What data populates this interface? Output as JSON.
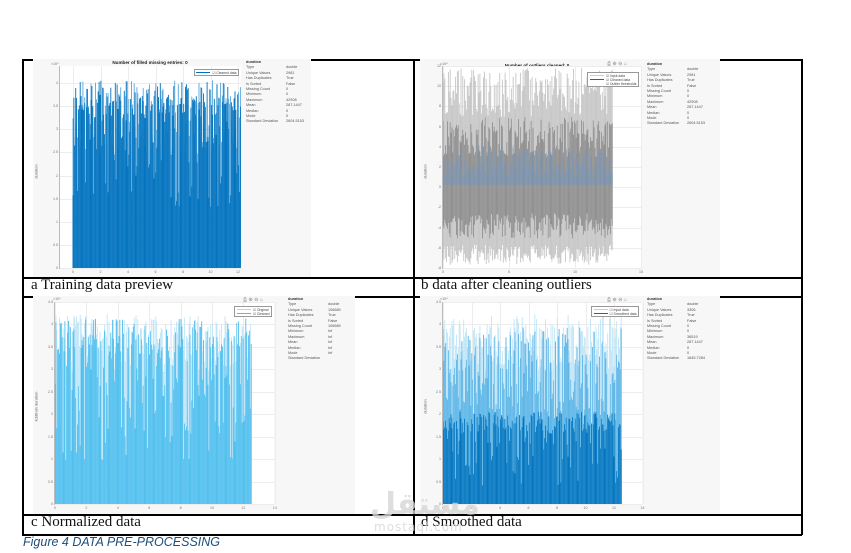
{
  "figure": {
    "caption": "Figure 4 DATA PRE-PROCESSING",
    "caption_color": "#1f4e79"
  },
  "panels": [
    {
      "id": "a",
      "caption": "a Training data preview",
      "plot_title": "Number of filled missing entries: 0",
      "y_exponent": "×10⁴",
      "y_label": "duration",
      "y_ticks": [
        "4",
        "3.5",
        "3",
        "2.5",
        "2",
        "1.5",
        "1",
        "0.5",
        "0"
      ],
      "x_ticks": [
        "0",
        "2",
        "4",
        "6",
        "8",
        "10",
        "12"
      ],
      "toolbar": false,
      "legend": [
        {
          "label": "☑ Cleaned data",
          "color": "#0072bd"
        }
      ],
      "stats": {
        "title": "duration",
        "rows": [
          {
            "key": "Type",
            "value": "double"
          },
          {
            "key": "Unique Values",
            "value": "2981"
          },
          {
            "key": "Has Duplicates",
            "value": "True"
          },
          {
            "key": "Is Sorted",
            "value": "False"
          },
          {
            "key": "Missing Count",
            "value": "0"
          },
          {
            "key": "Minimum",
            "value": "0"
          },
          {
            "key": "Maximum",
            "value": "42908"
          },
          {
            "key": "Mean",
            "value": "287.1447"
          },
          {
            "key": "Median",
            "value": "0"
          },
          {
            "key": "Mode",
            "value": "0"
          },
          {
            "key": "Standard Deviation",
            "value": "2604.5153"
          }
        ]
      }
    },
    {
      "id": "b",
      "caption": "b data after cleaning outliers",
      "plot_title": "Number of outliers cleaned: 0",
      "y_exponent": "×10⁴",
      "y_label": "duration",
      "y_ticks": [
        "12",
        "10",
        "8",
        "6",
        "4",
        "2",
        "0",
        "-2",
        "-4",
        "-6",
        "-8"
      ],
      "x_ticks": [
        "0",
        "5",
        "10",
        "15"
      ],
      "toolbar": true,
      "legend": [
        {
          "label": "☑ Input data",
          "color": "#a6d8f0"
        },
        {
          "label": "☑ Cleaned data",
          "color": "#0072bd"
        },
        {
          "label": "☑ Outlier thresholds",
          "color": "#ffffff"
        }
      ],
      "stats": {
        "title": "duration",
        "rows": [
          {
            "key": "Type",
            "value": "double"
          },
          {
            "key": "Unique Values",
            "value": "2981"
          },
          {
            "key": "Has Duplicates",
            "value": "True"
          },
          {
            "key": "Is Sorted",
            "value": "False"
          },
          {
            "key": "Missing Count",
            "value": "0"
          },
          {
            "key": "Minimum",
            "value": "0"
          },
          {
            "key": "Maximum",
            "value": "42908"
          },
          {
            "key": "Mean",
            "value": "287.1447"
          },
          {
            "key": "Median",
            "value": "0"
          },
          {
            "key": "Mode",
            "value": "0"
          },
          {
            "key": "Standard Deviation",
            "value": "2604.5153"
          }
        ]
      }
    },
    {
      "id": "c",
      "caption": "c Normalized data",
      "plot_title": "",
      "y_exponent": "×10⁴",
      "y_label": "kddtrain duration",
      "y_ticks": [
        "4.5",
        "4",
        "3.5",
        "3",
        "2.5",
        "2",
        "1.5",
        "1",
        "0.5",
        "0"
      ],
      "x_ticks": [
        "0",
        "2",
        "4",
        "6",
        "8",
        "10",
        "12",
        "14"
      ],
      "toolbar": true,
      "legend": [
        {
          "label": "☑ Original",
          "color": "#a6d8f0"
        },
        {
          "label": "☑ Cleaned",
          "color": "#4dbeee"
        }
      ],
      "stats": {
        "title": "duration",
        "rows": [
          {
            "key": "Type",
            "value": "double"
          },
          {
            "key": "Unique Values",
            "value": "106689"
          },
          {
            "key": "Has Duplicates",
            "value": "True"
          },
          {
            "key": "Is Sorted",
            "value": "False"
          },
          {
            "key": "Missing Count",
            "value": "106689"
          },
          {
            "key": "Minimum",
            "value": "Inf"
          },
          {
            "key": "Maximum",
            "value": "Inf"
          },
          {
            "key": "Mean",
            "value": "Inf"
          },
          {
            "key": "Median",
            "value": "Inf"
          },
          {
            "key": "Mode",
            "value": "Inf"
          },
          {
            "key": "Standard Deviation",
            "value": ""
          }
        ]
      }
    },
    {
      "id": "d",
      "caption": "d Smoothed data",
      "plot_title": "",
      "y_exponent": "×10⁴",
      "y_label": "duration",
      "y_ticks": [
        "4.5",
        "4",
        "3.5",
        "3",
        "2.5",
        "2",
        "1.5",
        "1",
        "0.5",
        "0"
      ],
      "x_ticks": [
        "0",
        "2",
        "4",
        "6",
        "8",
        "10",
        "12",
        "14"
      ],
      "toolbar": true,
      "legend": [
        {
          "label": "☑ Input data",
          "color": "#a6d8f0"
        },
        {
          "label": "☑ Smoothed data",
          "color": "#0072bd"
        }
      ],
      "stats": {
        "title": "duration",
        "rows": [
          {
            "key": "Type",
            "value": "double"
          },
          {
            "key": "Unique Values",
            "value": "3306"
          },
          {
            "key": "Has Duplicates",
            "value": "True"
          },
          {
            "key": "Is Sorted",
            "value": "False"
          },
          {
            "key": "Missing Count",
            "value": "0"
          },
          {
            "key": "Minimum",
            "value": "0"
          },
          {
            "key": "Maximum",
            "value": "36519"
          },
          {
            "key": "Mean",
            "value": "287.1447"
          },
          {
            "key": "Median",
            "value": "0"
          },
          {
            "key": "Mode",
            "value": "0"
          },
          {
            "key": "Standard Deviation",
            "value": "1645.7284"
          }
        ]
      }
    }
  ],
  "toolbar_icons": [
    "⎙",
    "⊕",
    "⊖",
    "⌂"
  ],
  "watermark": {
    "arabic": "مستقل",
    "latin": "mostaql.com"
  },
  "chart_data": [
    {
      "type": "bar",
      "title": "Number of filled missing entries: 0",
      "xlabel": "",
      "ylabel": "duration (×10⁴)",
      "x_range": [
        0,
        12.6
      ],
      "ylim": [
        0,
        4.4
      ],
      "series": [
        {
          "name": "Cleaned data",
          "color": "#0072bd",
          "envelope_max": 4.29,
          "typical_min_peak": 1.3
        }
      ],
      "grid": true
    },
    {
      "type": "line",
      "title": "Number of outliers cleaned: 0",
      "xlabel": "",
      "ylabel": "duration (×10⁴)",
      "x_range": [
        0,
        15
      ],
      "ylim": [
        -8,
        12
      ],
      "series": [
        {
          "name": "Input data",
          "color": "#a6d8f0"
        },
        {
          "name": "Cleaned data",
          "color": "#0072bd",
          "approx_range": [
            0,
            4.2
          ]
        },
        {
          "name": "Outlier thresholds",
          "color": "#999999",
          "approx_range": [
            -7.5,
            11.5
          ]
        }
      ],
      "grid": true
    },
    {
      "type": "bar",
      "title": "",
      "xlabel": "",
      "ylabel": "kddtrain duration (×10⁴)",
      "x_range": [
        0,
        14
      ],
      "ylim": [
        0,
        4.5
      ],
      "series": [
        {
          "name": "Original",
          "color": "#a6d8f0",
          "envelope_max": 4.29
        },
        {
          "name": "Cleaned",
          "color": "#4dbeee",
          "envelope_max": 4.2
        }
      ],
      "grid": true
    },
    {
      "type": "bar",
      "title": "",
      "xlabel": "",
      "ylabel": "duration (×10⁴)",
      "x_range": [
        0,
        14
      ],
      "ylim": [
        0,
        4.5
      ],
      "series": [
        {
          "name": "Input data",
          "color": "#a6d8f0",
          "envelope_max": 4.29
        },
        {
          "name": "Smoothed data",
          "color": "#0072bd",
          "envelope_max": 2.1
        }
      ],
      "grid": true
    }
  ]
}
